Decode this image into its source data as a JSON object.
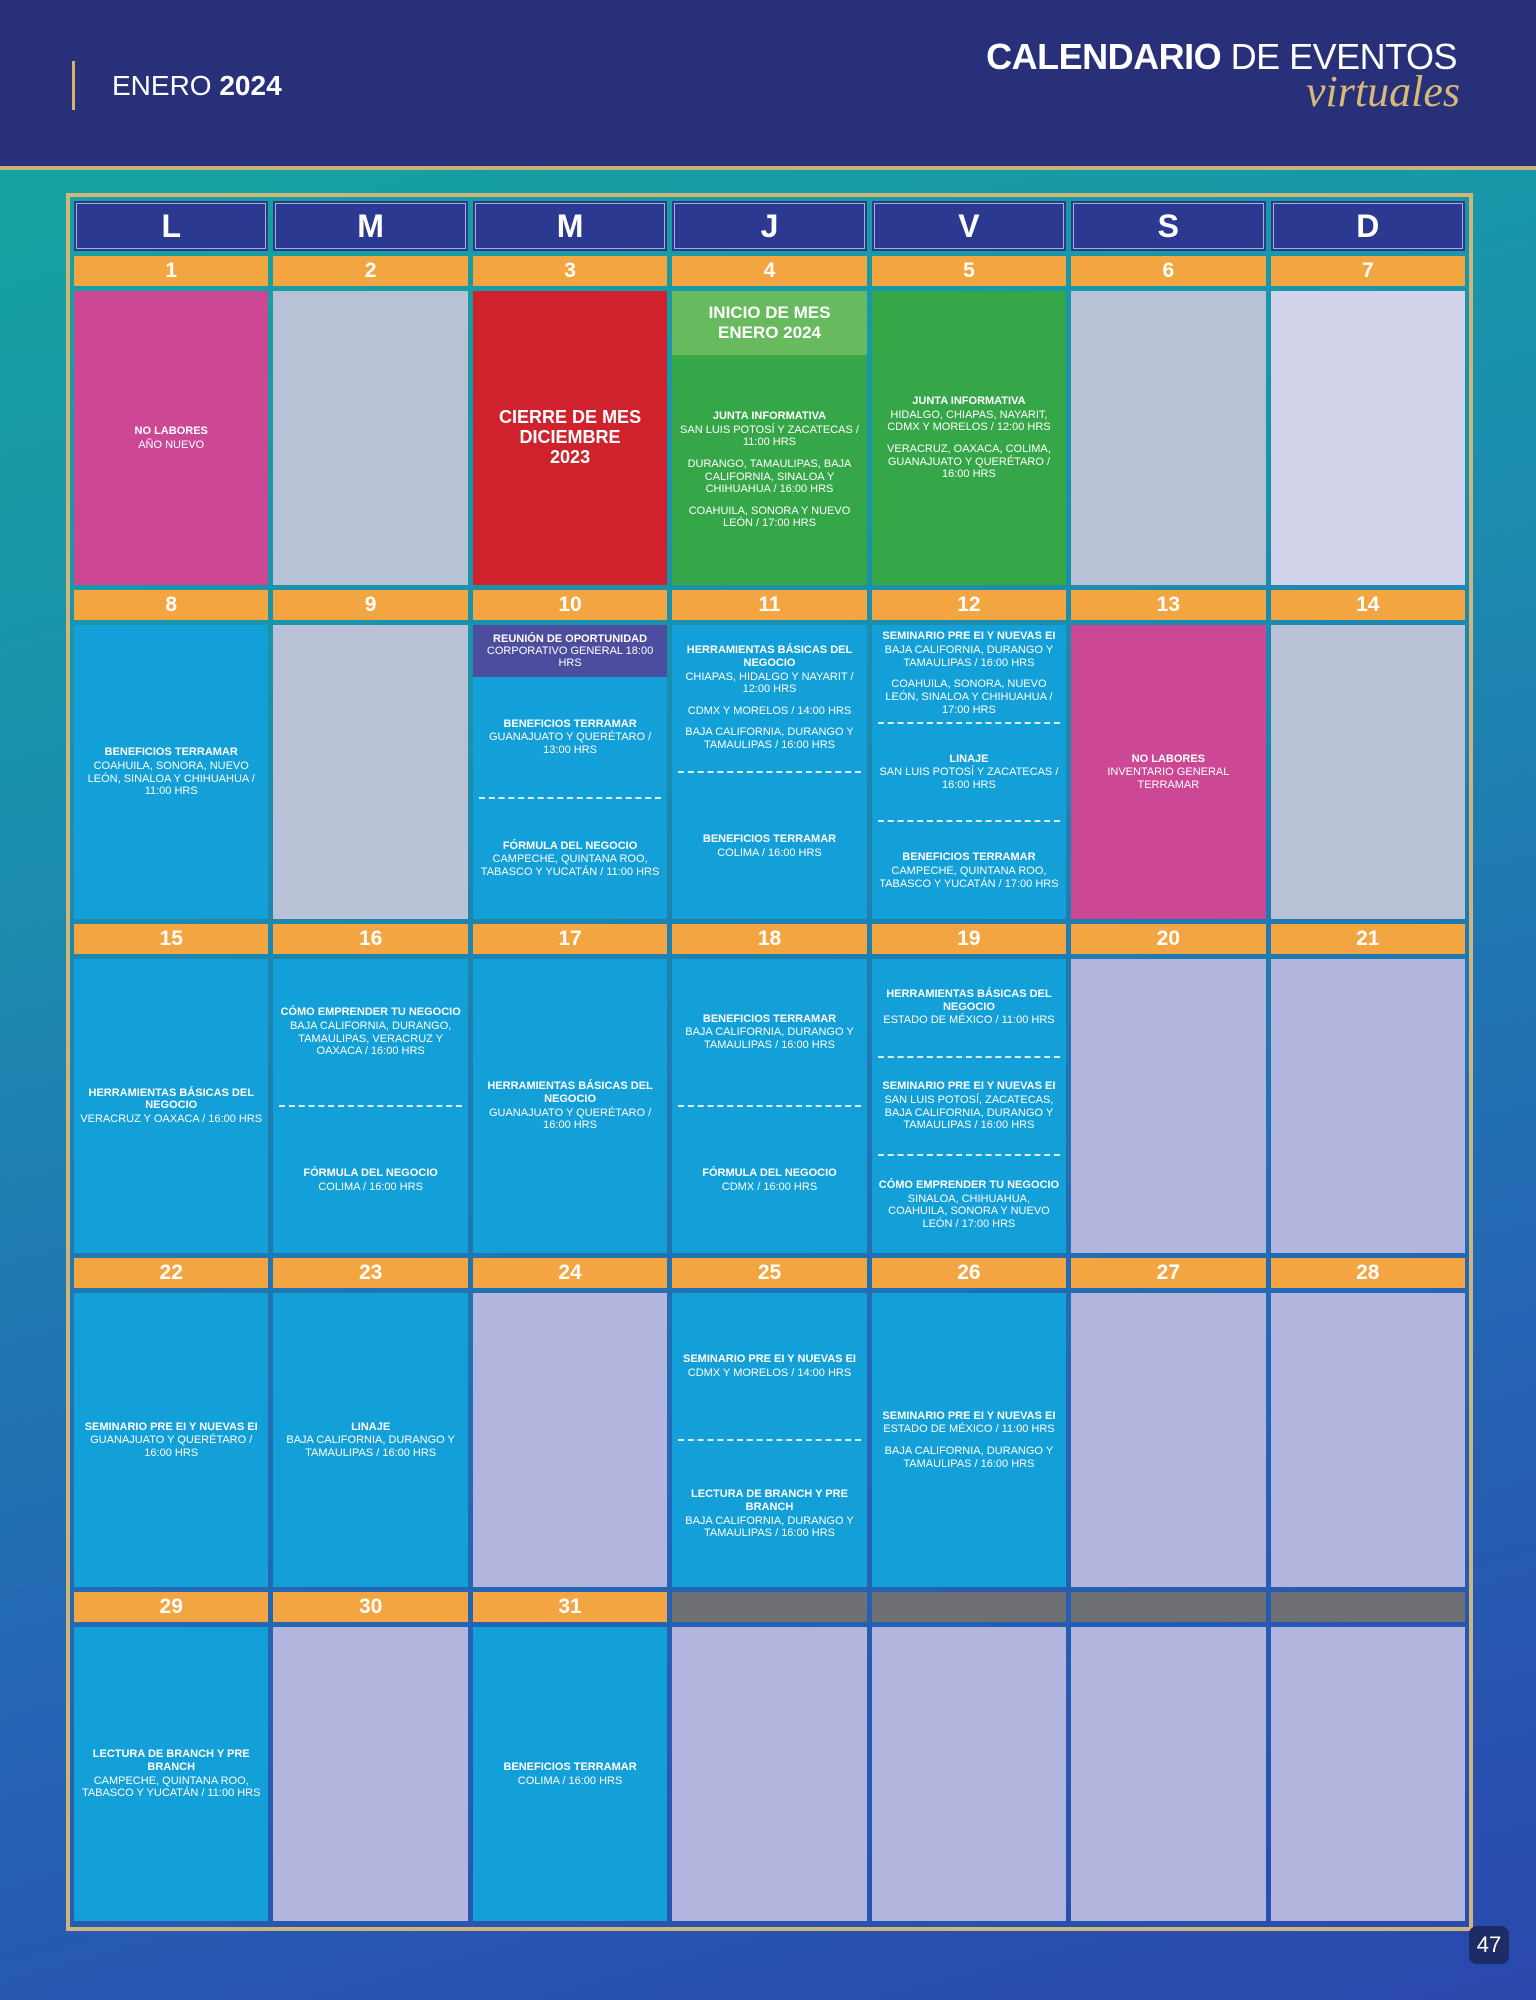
{
  "header": {
    "month": "ENERO",
    "year": "2024",
    "title_bold": "CALENDARIO",
    "title_rest": "DE EVENTOS",
    "title_script": "virtuales"
  },
  "calendar": {
    "weekdays": [
      "L",
      "M",
      "M",
      "J",
      "V",
      "S",
      "D"
    ],
    "weeks": [
      [
        {
          "date": 1,
          "kind": "pink",
          "segments": [
            {
              "title": "NO LABORES",
              "lines": [
                "AÑO NUEVO"
              ]
            }
          ]
        },
        {
          "date": 2,
          "kind": "gray"
        },
        {
          "date": 3,
          "kind": "red",
          "segments": [
            {
              "title": "CIERRE DE MES DICIEMBRE 2023"
            }
          ]
        },
        {
          "date": 4,
          "kind": "green",
          "header": {
            "kind": "lightgreen",
            "title": "INICIO DE MES ENERO 2024"
          },
          "segments": [
            {
              "title": "JUNTA INFORMATIVA",
              "lines": [
                "SAN LUIS POTOSÍ Y ZACATECAS / 11:00 HRS",
                "DURANGO, TAMAULIPAS, BAJA CALIFORNIA, SINALOA Y CHIHUAHUA / 16:00 HRS",
                "COAHUILA, SONORA Y NUEVO LEÓN / 17:00 HRS"
              ]
            }
          ]
        },
        {
          "date": 5,
          "kind": "green",
          "segments": [
            {
              "title": "JUNTA INFORMATIVA",
              "lines": [
                "HIDALGO, CHIAPAS, NAYARIT, CDMX Y MORELOS / 12:00 HRS",
                "VERACRUZ, OAXACA, COLIMA, GUANAJUATO Y QUERÉTARO / 16:00 HRS"
              ]
            }
          ]
        },
        {
          "date": 6,
          "kind": "gray"
        },
        {
          "date": 7,
          "kind": "light"
        }
      ],
      [
        {
          "date": 8,
          "kind": "blue",
          "segments": [
            {
              "title": "BENEFICIOS TERRAMAR",
              "lines": [
                "COAHUILA, SONORA, NUEVO LEÓN, SINALOA Y CHIHUAHUA / 11:00 HRS"
              ]
            }
          ]
        },
        {
          "date": 9,
          "kind": "gray"
        },
        {
          "date": 10,
          "kind": "blue",
          "header": {
            "kind": "purple",
            "title": "REUNIÓN DE OPORTUNIDAD",
            "lines": [
              "CORPORATIVO GENERAL 18:00 HRS"
            ]
          },
          "segments": [
            {
              "title": "BENEFICIOS TERRAMAR",
              "lines": [
                "GUANAJUATO Y QUERÉTARO / 13:00 HRS"
              ]
            },
            {
              "title": "FÓRMULA DEL NEGOCIO",
              "lines": [
                "CAMPECHE, QUINTANA ROO, TABASCO Y YUCATÁN / 11:00 HRS"
              ]
            }
          ]
        },
        {
          "date": 11,
          "kind": "blue",
          "segments": [
            {
              "title": "HERRAMIENTAS BÁSICAS DEL NEGOCIO",
              "lines": [
                "CHIAPAS, HIDALGO Y NAYARIT / 12:00 HRS",
                "CDMX Y MORELOS / 14:00 HRS",
                "BAJA CALIFORNIA, DURANGO Y TAMAULIPAS / 16:00 HRS"
              ]
            },
            {
              "title": "BENEFICIOS TERRAMAR",
              "lines": [
                "COLIMA / 16:00 HRS"
              ]
            }
          ]
        },
        {
          "date": 12,
          "kind": "blue",
          "segments": [
            {
              "title": "SEMINARIO PRE EI Y NUEVAS EI",
              "lines": [
                "BAJA CALIFORNIA, DURANGO Y TAMAULIPAS / 16:00 HRS",
                "COAHUILA, SONORA, NUEVO LEÓN, SINALOA Y CHIHUAHUA / 17:00 HRS"
              ]
            },
            {
              "title": "LINAJE",
              "lines": [
                "SAN LUIS POTOSÍ Y ZACATECAS / 16:00 HRS"
              ]
            },
            {
              "title": "BENEFICIOS TERRAMAR",
              "lines": [
                "CAMPECHE, QUINTANA ROO, TABASCO Y YUCATÁN / 17:00 HRS"
              ]
            }
          ]
        },
        {
          "date": 13,
          "kind": "pink",
          "segments": [
            {
              "title": "NO LABORES",
              "lines": [
                "INVENTARIO GENERAL TERRAMAR"
              ]
            }
          ]
        },
        {
          "date": 14,
          "kind": "gray"
        }
      ],
      [
        {
          "date": 15,
          "kind": "blue",
          "segments": [
            {
              "title": "HERRAMIENTAS BÁSICAS DEL NEGOCIO",
              "lines": [
                "VERACRUZ Y OAXACA / 16:00 HRS"
              ]
            }
          ]
        },
        {
          "date": 16,
          "kind": "blue",
          "segments": [
            {
              "title": "CÓMO EMPRENDER TU NEGOCIO",
              "lines": [
                "BAJA CALIFORNIA, DURANGO, TAMAULIPAS, VERACRUZ Y OAXACA / 16:00 HRS"
              ]
            },
            {
              "title": "FÓRMULA DEL NEGOCIO",
              "lines": [
                "COLIMA / 16:00 HRS"
              ]
            }
          ]
        },
        {
          "date": 17,
          "kind": "blue",
          "segments": [
            {
              "title": "HERRAMIENTAS BÁSICAS DEL NEGOCIO",
              "lines": [
                "GUANAJUATO Y QUERÉTARO / 16:00 HRS"
              ]
            }
          ]
        },
        {
          "date": 18,
          "kind": "blue",
          "segments": [
            {
              "title": "BENEFICIOS TERRAMAR",
              "lines": [
                "BAJA CALIFORNIA, DURANGO Y TAMAULIPAS / 16:00 HRS"
              ]
            },
            {
              "title": "FÓRMULA DEL NEGOCIO",
              "lines": [
                "CDMX / 16:00 HRS"
              ]
            }
          ]
        },
        {
          "date": 19,
          "kind": "blue",
          "segments": [
            {
              "title": "HERRAMIENTAS BÁSICAS DEL NEGOCIO",
              "lines": [
                "ESTADO DE MÉXICO / 11:00 HRS"
              ]
            },
            {
              "title": "SEMINARIO PRE EI Y NUEVAS EI",
              "lines": [
                "SAN LUIS POTOSÍ, ZACATECAS, BAJA CALIFORNIA, DURANGO Y TAMAULIPAS / 16:00 HRS"
              ]
            },
            {
              "title": "CÓMO EMPRENDER TU NEGOCIO",
              "lines": [
                "SINALOA, CHIHUAHUA, COAHUILA, SONORA Y NUEVO LEÓN / 17:00 HRS"
              ]
            }
          ]
        },
        {
          "date": 20,
          "kind": "lavender"
        },
        {
          "date": 21,
          "kind": "lavender"
        }
      ],
      [
        {
          "date": 22,
          "kind": "blue",
          "segments": [
            {
              "title": "SEMINARIO PRE EI Y NUEVAS EI",
              "lines": [
                "GUANAJUATO Y QUERÉTARO / 16:00 HRS"
              ]
            }
          ]
        },
        {
          "date": 23,
          "kind": "blue",
          "segments": [
            {
              "title": "LINAJE",
              "lines": [
                "BAJA CALIFORNIA, DURANGO Y TAMAULIPAS / 16:00 HRS"
              ]
            }
          ]
        },
        {
          "date": 24,
          "kind": "lavender"
        },
        {
          "date": 25,
          "kind": "blue",
          "segments": [
            {
              "title": "SEMINARIO PRE EI Y NUEVAS EI",
              "lines": [
                "CDMX Y MORELOS / 14:00 HRS"
              ]
            },
            {
              "title": "LECTURA DE BRANCH Y PRE BRANCH",
              "lines": [
                "BAJA CALIFORNIA, DURANGO Y TAMAULIPAS / 16:00 HRS"
              ]
            }
          ]
        },
        {
          "date": 26,
          "kind": "blue",
          "segments": [
            {
              "title": "SEMINARIO PRE EI Y NUEVAS EI",
              "lines": [
                "ESTADO DE MÉXICO / 11:00 HRS",
                "BAJA CALIFORNIA, DURANGO Y TAMAULIPAS / 16:00 HRS"
              ]
            }
          ]
        },
        {
          "date": 27,
          "kind": "lavender"
        },
        {
          "date": 28,
          "kind": "lavender"
        }
      ],
      [
        {
          "date": 29,
          "kind": "blue",
          "segments": [
            {
              "title": "LECTURA DE BRANCH Y PRE BRANCH",
              "lines": [
                "CAMPECHE, QUINTANA ROO, TABASCO Y YUCATÁN / 11:00 HRS"
              ]
            }
          ]
        },
        {
          "date": 30,
          "kind": "lavender"
        },
        {
          "date": 31,
          "kind": "blue",
          "segments": [
            {
              "title": "BENEFICIOS TERRAMAR",
              "lines": [
                "COLIMA / 16:00 HRS"
              ]
            }
          ]
        },
        {
          "date": null,
          "kind": "lavender"
        },
        {
          "date": null,
          "kind": "lavender"
        },
        {
          "date": null,
          "kind": "lavender"
        },
        {
          "date": null,
          "kind": "lavender"
        }
      ]
    ]
  },
  "page_number": "47"
}
